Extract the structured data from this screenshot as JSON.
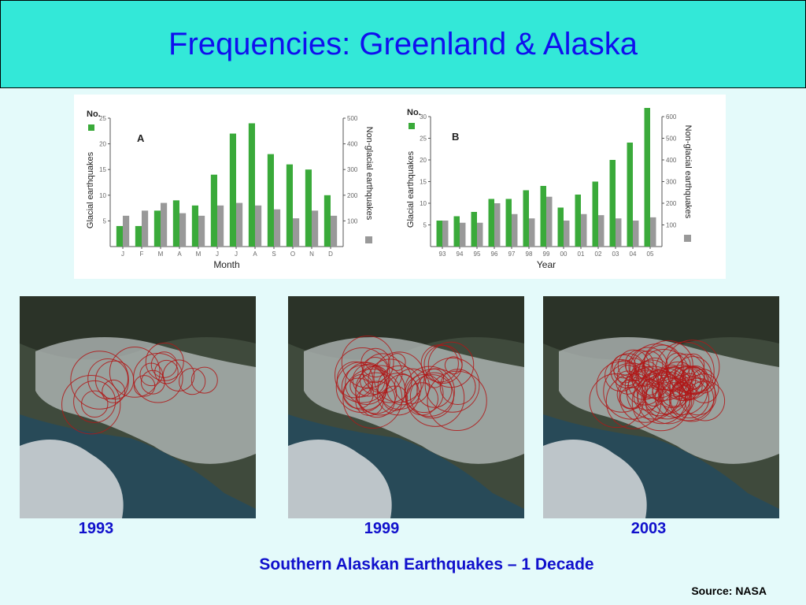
{
  "slide": {
    "title": "Frequencies: Greenland & Alaska",
    "caption": "Southern Alaskan Earthquakes – 1 Decade",
    "source": "Source: NASA"
  },
  "maps": [
    {
      "year": "1993"
    },
    {
      "year": "1999"
    },
    {
      "year": "2003"
    }
  ],
  "colors": {
    "glacial": "#3aaa3a",
    "non_glacial": "#999999",
    "title_bg": "#33e8d8",
    "title_text": "#1010ee",
    "text_blue": "#1010cc"
  },
  "chart_data": [
    {
      "type": "bar",
      "panel": "A",
      "count_label": "No.",
      "xlabel": "Month",
      "ylabel_left": "Glacial earthquakes",
      "ylabel_right": "Non-glacial earthquakes",
      "categories": [
        "J",
        "F",
        "M",
        "A",
        "M",
        "J",
        "J",
        "A",
        "S",
        "O",
        "N",
        "D"
      ],
      "ylim_left": [
        0,
        25
      ],
      "yticks_left": [
        5,
        10,
        15,
        20,
        25
      ],
      "ylim_right": [
        0,
        500
      ],
      "yticks_right": [
        100,
        200,
        300,
        400,
        500
      ],
      "series": [
        {
          "name": "Glacial earthquakes",
          "axis": "left",
          "values": [
            4,
            4,
            7,
            9,
            8,
            14,
            22,
            24,
            18,
            16,
            15,
            10
          ]
        },
        {
          "name": "Non-glacial earthquakes",
          "axis": "right",
          "values": [
            120,
            140,
            170,
            130,
            120,
            160,
            170,
            160,
            145,
            110,
            140,
            120
          ]
        }
      ]
    },
    {
      "type": "bar",
      "panel": "B",
      "count_label": "No.",
      "xlabel": "Year",
      "ylabel_left": "Glacial earthquakes",
      "ylabel_right": "Non-glacial earthquakes",
      "categories": [
        "93",
        "94",
        "95",
        "96",
        "97",
        "98",
        "99",
        "00",
        "01",
        "02",
        "03",
        "04",
        "05"
      ],
      "ylim_left": [
        0,
        30
      ],
      "yticks_left": [
        5,
        10,
        15,
        20,
        25,
        30
      ],
      "ylim_right": [
        0,
        600
      ],
      "yticks_right": [
        100,
        200,
        300,
        400,
        500,
        600
      ],
      "series": [
        {
          "name": "Glacial earthquakes",
          "axis": "left",
          "values": [
            6,
            7,
            8,
            11,
            11,
            13,
            14,
            9,
            12,
            15,
            20,
            24,
            32
          ]
        },
        {
          "name": "Non-glacial earthquakes",
          "axis": "right",
          "values": [
            120,
            110,
            110,
            200,
            150,
            130,
            230,
            120,
            150,
            145,
            130,
            120,
            135
          ]
        }
      ]
    }
  ]
}
